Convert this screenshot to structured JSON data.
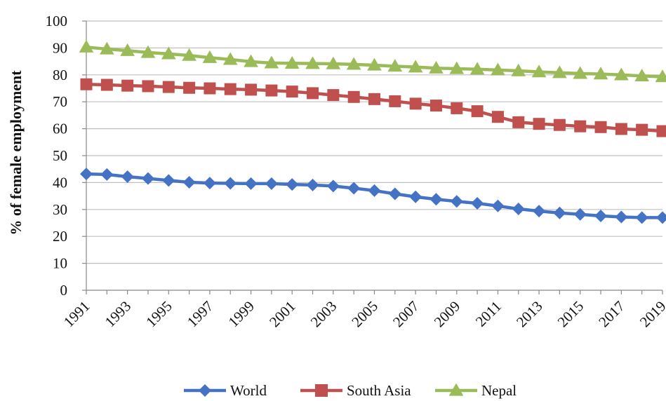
{
  "chart_data": {
    "type": "line",
    "title": "",
    "xlabel": "",
    "ylabel": "% of female employment",
    "ylim": [
      0,
      100
    ],
    "yticks": [
      0,
      10,
      20,
      30,
      40,
      50,
      60,
      70,
      80,
      90,
      100
    ],
    "x": [
      1991,
      1992,
      1993,
      1994,
      1995,
      1996,
      1997,
      1998,
      1999,
      2000,
      2001,
      2002,
      2003,
      2004,
      2005,
      2006,
      2007,
      2008,
      2009,
      2010,
      2011,
      2012,
      2013,
      2014,
      2015,
      2016,
      2017,
      2018,
      2019
    ],
    "xtick_labels": [
      "1991",
      "1993",
      "1995",
      "1997",
      "1999",
      "2001",
      "2003",
      "2005",
      "2007",
      "2009",
      "2011",
      "2013",
      "2015",
      "2017",
      "2019"
    ],
    "grid": "horizontal",
    "legend": "bottom",
    "series": [
      {
        "name": "World",
        "color": "#4472C4",
        "marker": "diamond",
        "values": [
          43.2,
          43.0,
          42.2,
          41.5,
          40.8,
          40.1,
          39.8,
          39.7,
          39.6,
          39.6,
          39.3,
          39.1,
          38.7,
          37.9,
          37.0,
          35.8,
          34.7,
          33.8,
          33.0,
          32.3,
          31.3,
          30.2,
          29.4,
          28.7,
          28.2,
          27.6,
          27.2,
          27.0,
          27.0
        ]
      },
      {
        "name": "South Asia",
        "color": "#C0504D",
        "marker": "square",
        "values": [
          76.5,
          76.3,
          76.0,
          75.8,
          75.5,
          75.2,
          75.0,
          74.7,
          74.5,
          74.2,
          73.8,
          73.2,
          72.5,
          71.8,
          71.0,
          70.2,
          69.3,
          68.6,
          67.6,
          66.5,
          64.4,
          62.4,
          61.8,
          61.4,
          60.9,
          60.6,
          59.9,
          59.6,
          59.1
        ]
      },
      {
        "name": "Nepal",
        "color": "#9BBB59",
        "marker": "triangle",
        "values": [
          90.3,
          89.6,
          89.0,
          88.3,
          87.8,
          87.2,
          86.4,
          85.7,
          84.9,
          84.4,
          84.3,
          84.2,
          84.1,
          83.9,
          83.6,
          83.2,
          82.9,
          82.5,
          82.3,
          82.1,
          81.8,
          81.5,
          81.1,
          80.8,
          80.5,
          80.3,
          80.0,
          79.6,
          79.3
        ]
      }
    ]
  }
}
